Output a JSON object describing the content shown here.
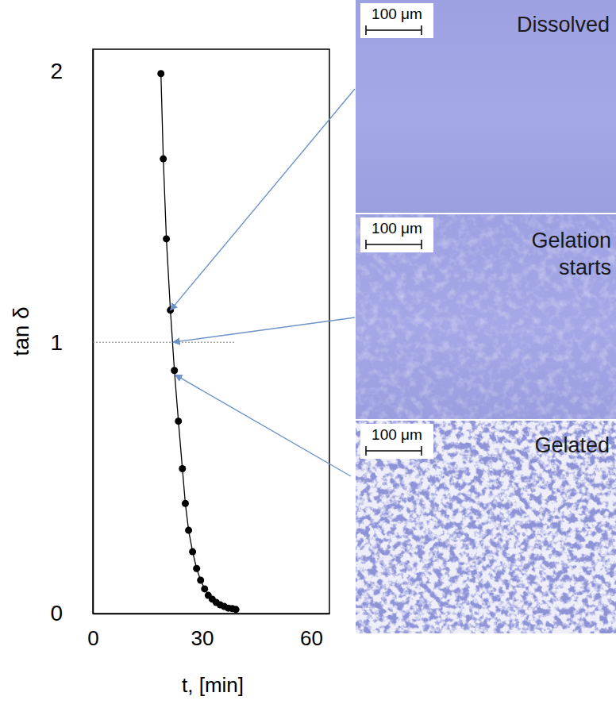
{
  "chart_data": {
    "type": "line",
    "marker": "circle",
    "color": "#000000",
    "x_label": "t, [min]",
    "y_label": "tan δ",
    "x": [
      18.7,
      19.35,
      20.2,
      21.3,
      22.4,
      23.5,
      24.6,
      25.4,
      26.3,
      27.4,
      28.5,
      29.6,
      30.7,
      31.7,
      32.8,
      33.9,
      35.0,
      36.1,
      37.2,
      38.3,
      39.3
    ],
    "values": [
      1.99,
      1.676,
      1.381,
      1.118,
      0.896,
      0.709,
      0.534,
      0.406,
      0.307,
      0.228,
      0.166,
      0.123,
      0.091,
      0.067,
      0.053,
      0.041,
      0.032,
      0.026,
      0.02,
      0.018,
      0.015
    ],
    "xlim": [
      0,
      65
    ],
    "xticks": [
      0,
      30,
      60
    ],
    "ylim": [
      0,
      2.08
    ],
    "yticks": [
      0,
      1,
      2
    ],
    "reference_line": {
      "y": 1,
      "x": [
        0,
        39
      ]
    },
    "panels": [
      {
        "label": "Dissolved",
        "scale_bar": "100 μm",
        "arrow_to": {
          "x": 21.3,
          "y": 1.118
        }
      },
      {
        "label": "Gelation starts",
        "scale_bar": "100 μm",
        "arrow_to": {
          "x": 22,
          "y": 1.0
        }
      },
      {
        "label": "Gelated",
        "scale_bar": "100 μm",
        "arrow_to": {
          "x": 22.6,
          "y": 0.88
        }
      }
    ]
  }
}
